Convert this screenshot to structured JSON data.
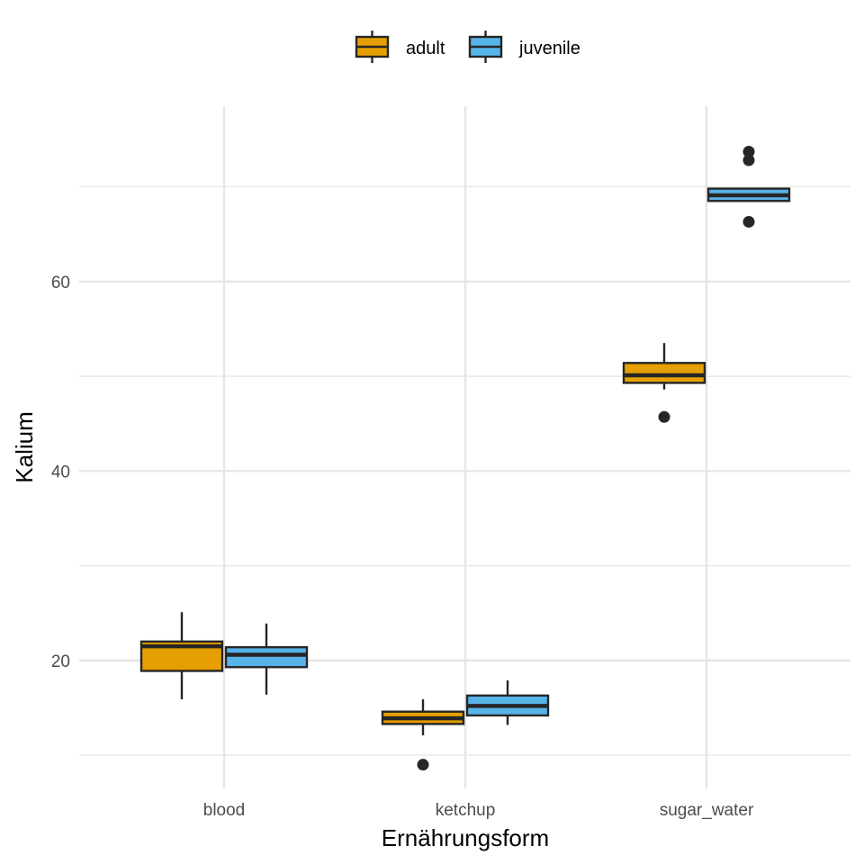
{
  "chart_data": {
    "type": "boxplot",
    "xlabel": "Ernährungsform",
    "ylabel": "Kalium",
    "categories": [
      "blood",
      "ketchup",
      "sugar_water"
    ],
    "ylim": [
      6.5,
      78.5
    ],
    "yticks_major": [
      20,
      40,
      60
    ],
    "yticks_major_labels": [
      "20",
      "40",
      "60"
    ],
    "yticks_minor": [
      10,
      30,
      50,
      70
    ],
    "grid": true,
    "legend": {
      "position": "top",
      "entries": [
        "adult",
        "juvenile"
      ]
    },
    "colors": {
      "adult": "#E69F00",
      "juvenile": "#56B4E9",
      "outline": "#262626",
      "grid": "#e6e6e6"
    },
    "series": [
      {
        "name": "adult",
        "boxes": [
          {
            "category": "blood",
            "whisker_low": 15.9,
            "q1": 18.9,
            "median": 21.5,
            "q3": 22.0,
            "whisker_high": 25.1,
            "outliers": []
          },
          {
            "category": "ketchup",
            "whisker_low": 12.1,
            "q1": 13.3,
            "median": 13.9,
            "q3": 14.6,
            "whisker_high": 15.9,
            "outliers": [
              9.0
            ]
          },
          {
            "category": "sugar_water",
            "whisker_low": 48.6,
            "q1": 49.3,
            "median": 50.1,
            "q3": 51.4,
            "whisker_high": 53.5,
            "outliers": [
              45.7
            ]
          }
        ]
      },
      {
        "name": "juvenile",
        "boxes": [
          {
            "category": "blood",
            "whisker_low": 16.4,
            "q1": 19.3,
            "median": 20.6,
            "q3": 21.4,
            "whisker_high": 23.9,
            "outliers": []
          },
          {
            "category": "ketchup",
            "whisker_low": 13.2,
            "q1": 14.2,
            "median": 15.2,
            "q3": 16.3,
            "whisker_high": 17.9,
            "outliers": []
          },
          {
            "category": "sugar_water",
            "whisker_low": 68.5,
            "q1": 68.5,
            "median": 69.1,
            "q3": 69.8,
            "whisker_high": 69.8,
            "outliers": [
              66.3,
              72.8,
              73.7
            ]
          }
        ]
      }
    ]
  }
}
